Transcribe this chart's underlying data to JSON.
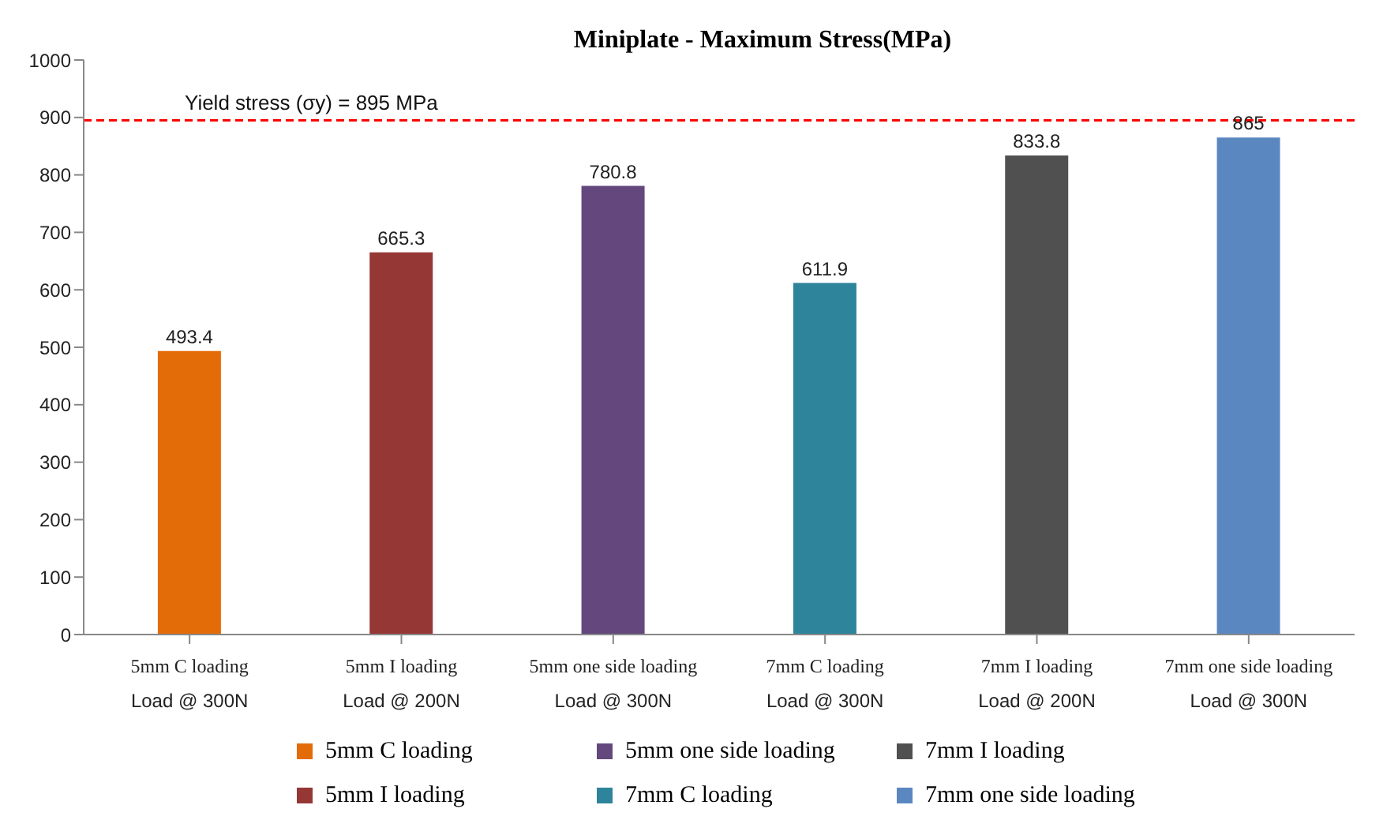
{
  "chart_data": {
    "type": "bar",
    "title": "Miniplate - Maximum Stress(MPa)",
    "categories": [
      "5mm C loading\nLoad @ 300N",
      "5mm I loading\nLoad @ 200N",
      "5mm one side loading\nLoad @ 300N",
      "7mm C loading\nLoad @ 300N",
      "7mm I loading\nLoad @ 200N",
      "7mm one side loading\nLoad @ 300N"
    ],
    "stacked": true,
    "series": [
      {
        "name": "5mm C loading",
        "color": "#e36c09",
        "values": [
          493.4,
          null,
          null,
          null,
          null,
          null
        ]
      },
      {
        "name": "5mm I loading",
        "color": "#953735",
        "values": [
          null,
          665.3,
          null,
          null,
          null,
          null
        ]
      },
      {
        "name": "5mm one side loading",
        "color": "#64487d",
        "values": [
          null,
          null,
          780.8,
          null,
          null,
          null
        ]
      },
      {
        "name": "7mm C loading",
        "color": "#2e849b",
        "values": [
          null,
          null,
          null,
          611.9,
          null,
          null
        ]
      },
      {
        "name": "7mm I loading",
        "color": "#505050",
        "values": [
          null,
          null,
          null,
          null,
          833.8,
          null
        ]
      },
      {
        "name": "7mm one side loading",
        "color": "#5b87c0",
        "values": [
          null,
          null,
          null,
          null,
          null,
          865
        ]
      }
    ],
    "ylim": [
      0,
      1000
    ],
    "yticks": [
      0,
      100,
      200,
      300,
      400,
      500,
      600,
      700,
      800,
      900,
      1000
    ],
    "ref_lines": [
      {
        "axis": "y",
        "value": 895,
        "label": "Yield stress (σy) = 895 MPa",
        "color": "#ff0000",
        "line_style": "dashed"
      }
    ],
    "data_labels": true,
    "grid": false,
    "legend": "bottom"
  }
}
